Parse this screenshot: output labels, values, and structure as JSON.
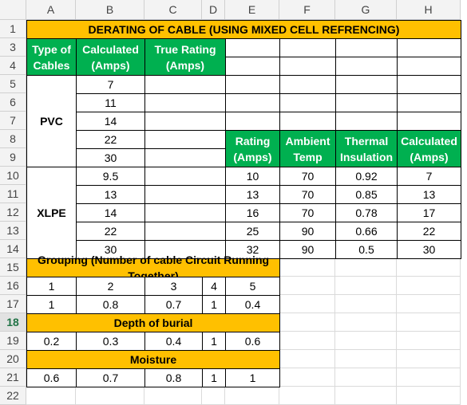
{
  "column_headers": [
    "A",
    "B",
    "C",
    "D",
    "E",
    "F",
    "G",
    "H"
  ],
  "row_headers": [
    1,
    3,
    4,
    5,
    6,
    7,
    8,
    9,
    10,
    11,
    12,
    13,
    14,
    15,
    16,
    17,
    18,
    19,
    20,
    21,
    22
  ],
  "title": "DERATING OF CABLE (USING MIXED CELL REFRENCING)",
  "cable_table": {
    "headers": [
      [
        "Type of",
        "Cables"
      ],
      [
        "Calculated",
        "(Amps)"
      ],
      [
        "True Rating",
        "(Amps)"
      ]
    ],
    "groups": [
      {
        "name": "PVC",
        "calculated": [
          7,
          11,
          14,
          22,
          30
        ]
      },
      {
        "name": "XLPE",
        "calculated": [
          9.5,
          13,
          14,
          22,
          30
        ]
      }
    ]
  },
  "rating_table": {
    "headers": [
      [
        "Rating",
        "(Amps)"
      ],
      [
        "Ambient",
        "Temp"
      ],
      [
        "Thermal",
        "Insulation"
      ],
      [
        "Calculated",
        "(Amps)"
      ]
    ],
    "rows": [
      [
        10,
        70,
        0.92,
        7
      ],
      [
        13,
        70,
        0.85,
        13
      ],
      [
        16,
        70,
        0.78,
        17
      ],
      [
        25,
        90,
        0.66,
        22
      ],
      [
        32,
        90,
        0.5,
        30
      ]
    ]
  },
  "grouping": {
    "title": "Grouping (Number of cable Circuit Running Together)",
    "rows": [
      [
        1,
        2,
        3,
        4,
        5
      ],
      [
        1,
        0.8,
        0.7,
        1,
        0.4
      ]
    ]
  },
  "depth_of_burial": {
    "title": "Depth of burial",
    "values": [
      0.2,
      0.3,
      0.4,
      1,
      0.6
    ]
  },
  "moisture": {
    "title": "Moisture",
    "values": [
      0.6,
      0.7,
      0.8,
      1,
      1
    ]
  }
}
